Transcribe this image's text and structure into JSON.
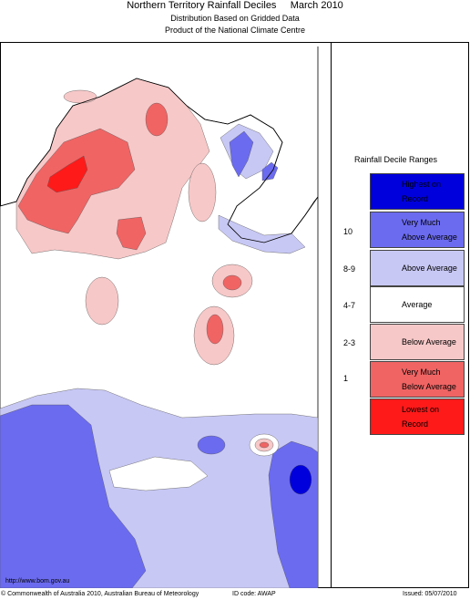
{
  "header": {
    "title": "Northern Territory Rainfall Deciles     March 2010",
    "subtitle1": "Distribution Based on Gridded Data",
    "subtitle2": "Product of the National Climate Centre"
  },
  "legend": {
    "title": "Rainfall Decile Ranges",
    "items": [
      {
        "label": "Highest on\nRecord",
        "range": "",
        "color": "#0000dd"
      },
      {
        "label": "Very Much\nAbove Average",
        "range": "10",
        "color": "#6b6bf0"
      },
      {
        "label": "Above Average",
        "range": "8-9",
        "color": "#c8c8f5"
      },
      {
        "label": "Average",
        "range": "4-7",
        "color": "#ffffff"
      },
      {
        "label": "Below Average",
        "range": "2-3",
        "color": "#f7c8c8"
      },
      {
        "label": "Very Much\nBelow Average",
        "range": "1",
        "color": "#f06464"
      },
      {
        "label": "Lowest on\nRecord",
        "range": "",
        "color": "#ff1a1a"
      }
    ]
  },
  "footer": {
    "url": "http://www.bom.gov.au",
    "copyright": "© Commonwealth of Australia 2010, Australian Bureau of Meteorology",
    "id_code": "ID code: AWAP",
    "issued": "Issued: 05/07/2010"
  }
}
